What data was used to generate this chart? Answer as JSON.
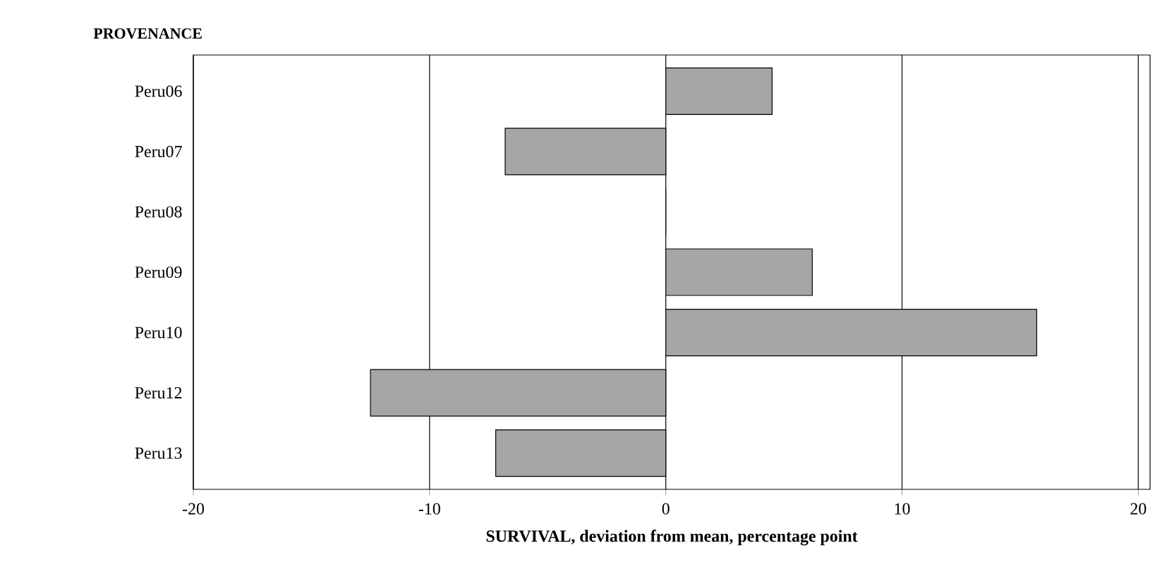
{
  "chart_data": {
    "type": "bar",
    "orientation": "horizontal",
    "ylabel": "PROVENANCE",
    "xlabel": "SURVIVAL, deviation from mean, percentage point",
    "categories": [
      "Peru06",
      "Peru07",
      "Peru08",
      "Peru09",
      "Peru10",
      "Peru12",
      "Peru13"
    ],
    "values": [
      4.5,
      -6.8,
      0,
      6.2,
      15.7,
      -12.5,
      -7.2
    ],
    "color": "#a6a6a6",
    "xlim": [
      -20,
      20.5
    ],
    "xticks": [
      -20,
      -10,
      0,
      10,
      20
    ],
    "grid": "x"
  }
}
